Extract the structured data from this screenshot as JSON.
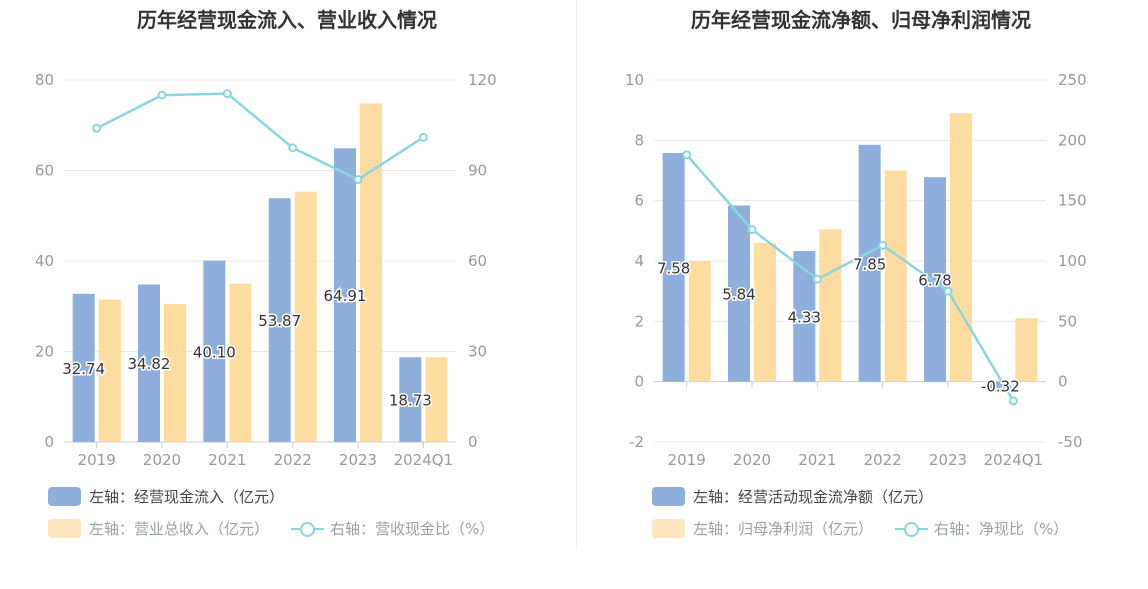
{
  "chart_data": [
    {
      "type": "bar",
      "title": "历年经营现金流入、营业收入情况",
      "categories": [
        "2019",
        "2020",
        "2021",
        "2022",
        "2023",
        "2024Q1"
      ],
      "left_axis": {
        "ylim": [
          0,
          80
        ],
        "ticks": [
          0,
          20,
          40,
          60,
          80
        ]
      },
      "right_axis": {
        "ylim": [
          0,
          120
        ],
        "ticks": [
          0,
          30,
          60,
          90,
          120
        ]
      },
      "series": [
        {
          "name": "左轴：经营现金流入（亿元）",
          "type": "bar",
          "axis": "left",
          "color": "#8eaedc",
          "values": [
            32.74,
            34.82,
            40.1,
            53.87,
            64.91,
            18.73
          ],
          "labels": [
            "32.74",
            "34.82",
            "40.10",
            "53.87",
            "64.91",
            "18.73"
          ]
        },
        {
          "name": "左轴：营业总收入（亿元）",
          "type": "bar",
          "axis": "left",
          "color": "#fedb9e",
          "values": [
            31.5,
            30.5,
            35.0,
            55.3,
            74.8,
            18.7
          ]
        },
        {
          "name": "右轴：营收现金比（%）",
          "type": "line",
          "axis": "right",
          "color": "#8bd5dd",
          "values": [
            104,
            115,
            115.5,
            97.5,
            87,
            101
          ]
        }
      ],
      "legend": {
        "placement": "bottom"
      }
    },
    {
      "type": "bar",
      "title": "历年经营现金流净额、归母净利润情况",
      "categories": [
        "2019",
        "2020",
        "2021",
        "2022",
        "2023",
        "2024Q1"
      ],
      "left_axis": {
        "ylim": [
          -2,
          10
        ],
        "ticks": [
          -2,
          0,
          2,
          4,
          6,
          8,
          10
        ]
      },
      "right_axis": {
        "ylim": [
          -50,
          250
        ],
        "ticks": [
          -50,
          0,
          50,
          100,
          150,
          200,
          250
        ]
      },
      "series": [
        {
          "name": "左轴：经营活动现金流净额（亿元）",
          "type": "bar",
          "axis": "left",
          "color": "#8eaedc",
          "values": [
            7.58,
            5.84,
            4.33,
            7.85,
            6.78,
            -0.32
          ],
          "labels": [
            "7.58",
            "5.84",
            "4.33",
            "7.85",
            "6.78",
            "-0.32"
          ]
        },
        {
          "name": "左轴：归母净利润（亿元）",
          "type": "bar",
          "axis": "left",
          "color": "#fedb9e",
          "values": [
            4.0,
            4.6,
            5.05,
            7.0,
            8.9,
            2.1
          ]
        },
        {
          "name": "右轴：净现比（%）",
          "type": "line",
          "axis": "right",
          "color": "#8bd5dd",
          "values": [
            188,
            126,
            85,
            113,
            75,
            -16
          ]
        }
      ],
      "legend": {
        "placement": "bottom"
      }
    }
  ]
}
